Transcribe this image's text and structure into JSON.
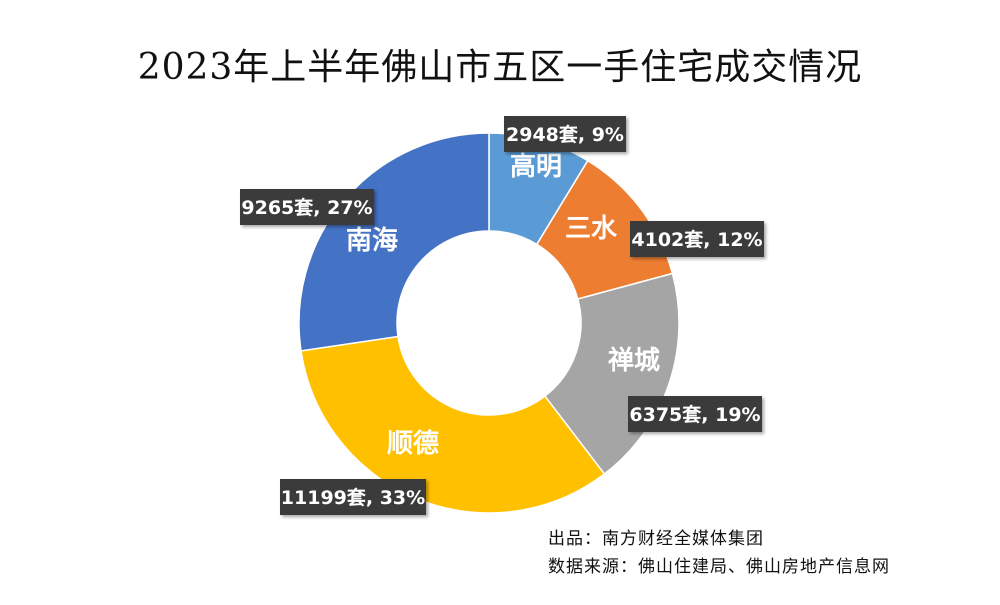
{
  "chart_data": {
    "type": "pie",
    "subtype": "donut",
    "title": "2023年上半年佛山市五区一手住宅成交情况",
    "slices": [
      {
        "name": "高明",
        "value": 2948,
        "percent": "9%",
        "label": "2948套, 9%",
        "color": "#5b9bd5"
      },
      {
        "name": "三水",
        "value": 4102,
        "percent": "12%",
        "label": "4102套, 12%",
        "color": "#ed7d31"
      },
      {
        "name": "禅城",
        "value": 6375,
        "percent": "19%",
        "label": "6375套, 19%",
        "color": "#a5a5a5"
      },
      {
        "name": "顺德",
        "value": 11199,
        "percent": "33%",
        "label": "11199套, 33%",
        "color": "#ffc000"
      },
      {
        "name": "南海",
        "value": 9265,
        "percent": "27%",
        "label": "9265套, 27%",
        "color": "#4472c4"
      }
    ]
  },
  "footer": {
    "producer": "出品：南方财经全媒体集团",
    "source": "数据来源：佛山住建局、佛山房地产信息网"
  }
}
